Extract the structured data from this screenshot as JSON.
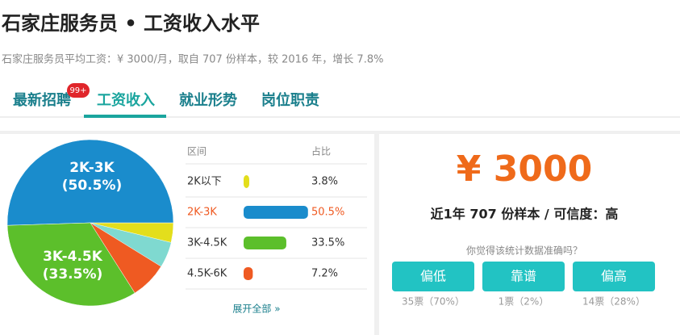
{
  "header": {
    "title": "石家庄服务员 • 工资收入水平",
    "subtitle": "石家庄服务员平均工资：¥ 3000/月，取自 707 份样本，较 2016 年，增长 7.8%"
  },
  "tabs": [
    {
      "label": "最新招聘",
      "badge": "99+"
    },
    {
      "label": "工资收入"
    },
    {
      "label": "就业形势"
    },
    {
      "label": "岗位职责"
    }
  ],
  "chart_data": {
    "type": "pie",
    "categories": [
      "2K以下",
      "2K-3K",
      "3K-4.5K",
      "4.5K-6K"
    ],
    "values": [
      3.8,
      50.5,
      33.5,
      7.2
    ],
    "value_labels": [
      "3.8%",
      "50.5%",
      "33.5%",
      "7.2%"
    ],
    "colors": [
      "#e3de1c",
      "#1a8ccc",
      "#5cbf2b",
      "#ef5a22"
    ],
    "pie_labels": [
      null,
      "(50.5%)",
      "(33.5%)",
      null
    ],
    "table_headers": [
      "区间",
      "占比"
    ],
    "highlight_index": 1,
    "expand_link": "展开全部 »"
  },
  "summary": {
    "salary": "¥ 3000",
    "sample": "近1年 707 份样本 / 可信度：高",
    "question": "你觉得该统计数据准确吗？"
  },
  "votes": [
    {
      "label": "偏低",
      "count": "35票（70%）"
    },
    {
      "label": "靠谱",
      "count": "1票（2%）"
    },
    {
      "label": "偏高",
      "count": "14票（28%）"
    }
  ]
}
